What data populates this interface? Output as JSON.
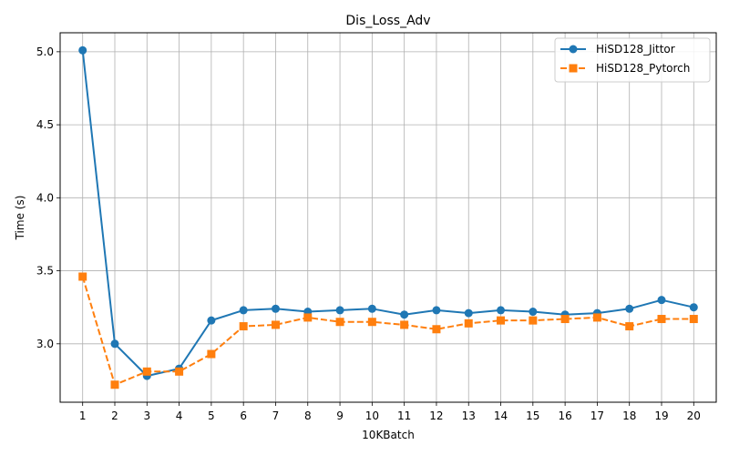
{
  "chart_data": {
    "type": "line",
    "title": "Dis_Loss_Adv",
    "xlabel": "10KBatch",
    "ylabel": "Time (s)",
    "x": [
      1,
      2,
      3,
      4,
      5,
      6,
      7,
      8,
      9,
      10,
      11,
      12,
      13,
      14,
      15,
      16,
      17,
      18,
      19,
      20
    ],
    "xlim": [
      0.3,
      20.7
    ],
    "ylim": [
      2.6,
      5.13
    ],
    "yticks": [
      3.0,
      3.5,
      4.0,
      4.5,
      5.0
    ],
    "ytick_labels": [
      "3.0",
      "3.5",
      "4.0",
      "4.5",
      "5.0"
    ],
    "grid": true,
    "legend_position": "upper-right",
    "series": [
      {
        "name": "HiSD128_Jittor",
        "color": "#1f77b4",
        "marker": "circle",
        "linestyle": "solid",
        "values": [
          5.01,
          3.0,
          2.78,
          2.83,
          3.16,
          3.23,
          3.24,
          3.22,
          3.23,
          3.24,
          3.2,
          3.23,
          3.21,
          3.23,
          3.22,
          3.2,
          3.21,
          3.24,
          3.3,
          3.25
        ]
      },
      {
        "name": "HiSD128_Pytorch",
        "color": "#ff7f0e",
        "marker": "square",
        "linestyle": "dashed",
        "values": [
          3.46,
          2.72,
          2.81,
          2.81,
          2.93,
          3.12,
          3.13,
          3.18,
          3.15,
          3.15,
          3.13,
          3.1,
          3.14,
          3.16,
          3.16,
          3.17,
          3.18,
          3.12,
          3.17,
          3.17
        ]
      }
    ]
  }
}
